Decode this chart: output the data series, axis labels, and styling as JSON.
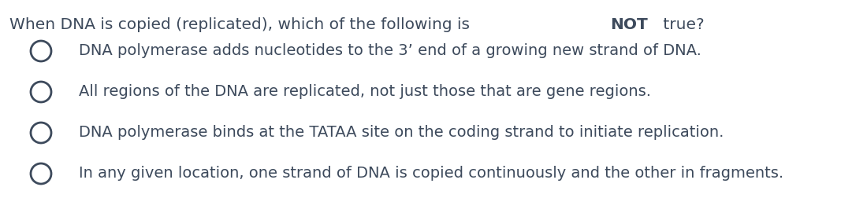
{
  "background_color": "#ffffff",
  "question_pre": "When DNA is copied (replicated), which of the following is ",
  "question_bold": "NOT",
  "question_post": " true?",
  "question_text_color": "#3d4a5c",
  "options": [
    "DNA polymerase adds nucleotides to the 3’ end of a growing new strand of DNA.",
    "All regions of the DNA are replicated, not just those that are gene regions.",
    "DNA polymerase binds at the TATAA site on the coding strand to initiate replication.",
    "In any given location, one strand of DNA is copied continuously and the other in fragments."
  ],
  "option_text_color": "#3d4a5c",
  "circle_edge_color": "#3d4a5c",
  "question_fontsize": 14.5,
  "option_fontsize": 14.0,
  "figsize": [
    11.0,
    2.8
  ],
  "dpi": 100
}
